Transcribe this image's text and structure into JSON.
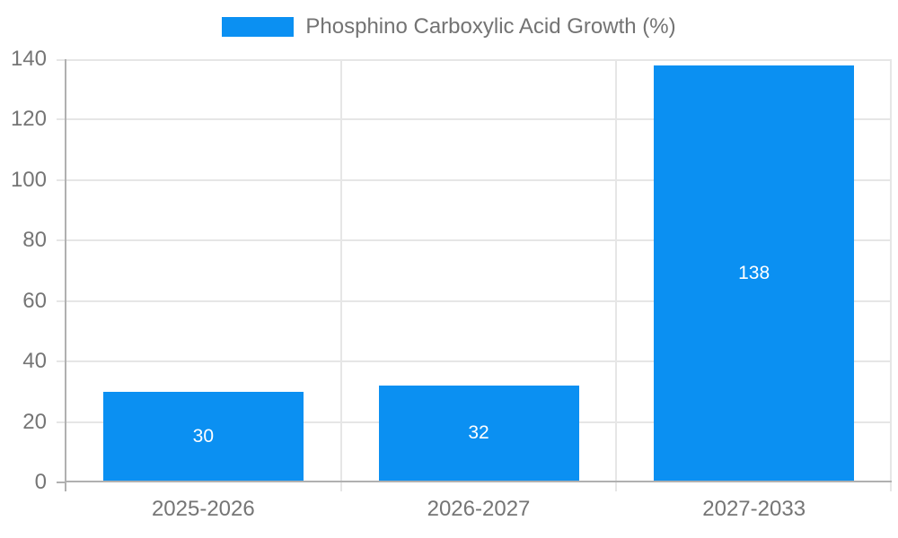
{
  "legend": {
    "label": "Phosphino Carboxylic Acid Growth (%)"
  },
  "chart_data": {
    "type": "bar",
    "title": "Phosphino Carboxylic Acid Growth (%)",
    "categories": [
      "2025-2026",
      "2026-2027",
      "2027-2033"
    ],
    "series": [
      {
        "name": "Phosphino Carboxylic Acid Growth (%)",
        "values": [
          30,
          32,
          138
        ]
      }
    ],
    "bar_value_labels": [
      "30",
      "32",
      "138"
    ],
    "xlabel": "",
    "ylabel": "",
    "ylim": [
      0,
      140
    ],
    "ytick_step": 20,
    "ytick_labels": [
      "0",
      "20",
      "40",
      "60",
      "80",
      "100",
      "120",
      "140"
    ],
    "grid": true,
    "legend_position": "top-center",
    "colors": {
      "bar": "#0b90f2",
      "bar_value_text": "#ffffff",
      "grid": "#e6e6e6",
      "axis": "#b0b0b0",
      "tick_text": "#757575",
      "legend_text": "#737373",
      "background": "#ffffff"
    }
  }
}
